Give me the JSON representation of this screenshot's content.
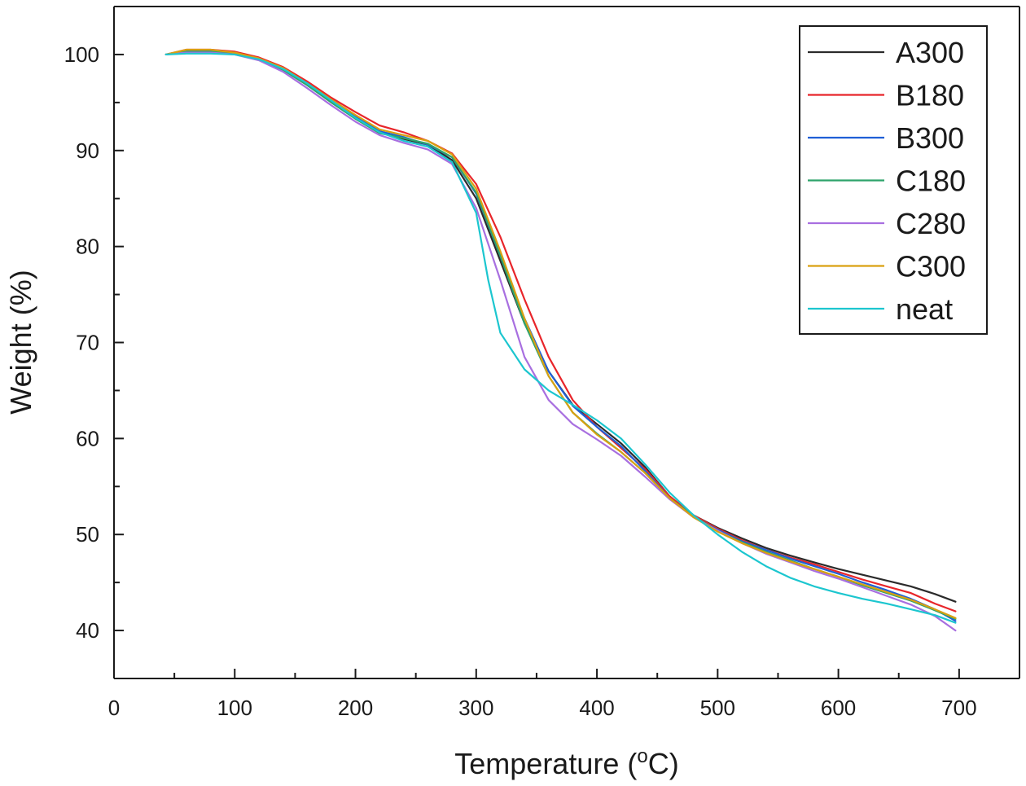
{
  "chart_data": {
    "type": "line",
    "title": "",
    "xlabel": "Temperature (",
    "xlabel_super": "o",
    "xlabel_tail": "C)",
    "ylabel": "Weight (%)",
    "xlim": [
      0,
      750
    ],
    "ylim": [
      35,
      105
    ],
    "xticks": [
      0,
      100,
      200,
      300,
      400,
      500,
      600,
      700
    ],
    "yticks": [
      40,
      50,
      60,
      70,
      80,
      90,
      100
    ],
    "legend_position": "top-right",
    "series": [
      {
        "name": "A300",
        "color": "#2b2b2b",
        "points": [
          [
            43,
            100
          ],
          [
            60,
            100.4
          ],
          [
            80,
            100.4
          ],
          [
            100,
            100.2
          ],
          [
            120,
            99.6
          ],
          [
            140,
            98.6
          ],
          [
            160,
            97.0
          ],
          [
            180,
            95.3
          ],
          [
            200,
            93.6
          ],
          [
            220,
            92.0
          ],
          [
            240,
            91.2
          ],
          [
            260,
            90.6
          ],
          [
            280,
            89.0
          ],
          [
            300,
            85.0
          ],
          [
            320,
            78.5
          ],
          [
            340,
            72.0
          ],
          [
            360,
            67.0
          ],
          [
            380,
            63.5
          ],
          [
            400,
            61.5
          ],
          [
            420,
            59.5
          ],
          [
            440,
            57.0
          ],
          [
            460,
            54.0
          ],
          [
            480,
            52.0
          ],
          [
            500,
            50.7
          ],
          [
            520,
            49.6
          ],
          [
            540,
            48.6
          ],
          [
            560,
            47.8
          ],
          [
            580,
            47.1
          ],
          [
            600,
            46.4
          ],
          [
            620,
            45.8
          ],
          [
            640,
            45.2
          ],
          [
            660,
            44.6
          ],
          [
            680,
            43.8
          ],
          [
            697,
            43.0
          ]
        ]
      },
      {
        "name": "B180",
        "color": "#e8252a",
        "points": [
          [
            43,
            100
          ],
          [
            60,
            100.5
          ],
          [
            80,
            100.5
          ],
          [
            100,
            100.3
          ],
          [
            120,
            99.7
          ],
          [
            140,
            98.7
          ],
          [
            160,
            97.2
          ],
          [
            180,
            95.5
          ],
          [
            200,
            94.0
          ],
          [
            220,
            92.6
          ],
          [
            240,
            91.9
          ],
          [
            260,
            91.0
          ],
          [
            280,
            89.7
          ],
          [
            300,
            86.5
          ],
          [
            320,
            81.0
          ],
          [
            340,
            74.5
          ],
          [
            360,
            68.5
          ],
          [
            380,
            64.0
          ],
          [
            400,
            61.2
          ],
          [
            420,
            59.0
          ],
          [
            440,
            56.8
          ],
          [
            460,
            54.0
          ],
          [
            480,
            52.0
          ],
          [
            500,
            50.6
          ],
          [
            520,
            49.4
          ],
          [
            540,
            48.4
          ],
          [
            560,
            47.6
          ],
          [
            580,
            46.9
          ],
          [
            600,
            46.1
          ],
          [
            620,
            45.3
          ],
          [
            640,
            44.6
          ],
          [
            660,
            43.9
          ],
          [
            680,
            42.8
          ],
          [
            697,
            42.0
          ]
        ]
      },
      {
        "name": "B300",
        "color": "#1f5fd6",
        "points": [
          [
            43,
            100
          ],
          [
            60,
            100.3
          ],
          [
            80,
            100.3
          ],
          [
            100,
            100.1
          ],
          [
            120,
            99.5
          ],
          [
            140,
            98.5
          ],
          [
            160,
            97.0
          ],
          [
            180,
            95.2
          ],
          [
            200,
            93.6
          ],
          [
            220,
            92.0
          ],
          [
            240,
            91.4
          ],
          [
            260,
            90.6
          ],
          [
            280,
            89.3
          ],
          [
            300,
            85.5
          ],
          [
            320,
            79.0
          ],
          [
            340,
            72.5
          ],
          [
            360,
            67.0
          ],
          [
            380,
            63.4
          ],
          [
            400,
            61.2
          ],
          [
            420,
            59.2
          ],
          [
            440,
            56.6
          ],
          [
            460,
            53.8
          ],
          [
            480,
            51.8
          ],
          [
            500,
            50.5
          ],
          [
            520,
            49.3
          ],
          [
            540,
            48.4
          ],
          [
            560,
            47.5
          ],
          [
            580,
            46.7
          ],
          [
            600,
            45.9
          ],
          [
            620,
            45.0
          ],
          [
            640,
            44.2
          ],
          [
            660,
            43.3
          ],
          [
            680,
            42.2
          ],
          [
            697,
            41.0
          ]
        ]
      },
      {
        "name": "C180",
        "color": "#2ea36b",
        "points": [
          [
            43,
            100
          ],
          [
            60,
            100.3
          ],
          [
            80,
            100.3
          ],
          [
            100,
            100.1
          ],
          [
            120,
            99.5
          ],
          [
            140,
            98.4
          ],
          [
            160,
            96.8
          ],
          [
            180,
            95.0
          ],
          [
            200,
            93.3
          ],
          [
            220,
            91.8
          ],
          [
            240,
            91.3
          ],
          [
            260,
            90.7
          ],
          [
            280,
            89.3
          ],
          [
            300,
            85.6
          ],
          [
            320,
            79.0
          ],
          [
            340,
            72.0
          ],
          [
            360,
            66.5
          ],
          [
            380,
            62.7
          ],
          [
            400,
            60.5
          ],
          [
            420,
            58.6
          ],
          [
            440,
            56.4
          ],
          [
            460,
            53.8
          ],
          [
            480,
            51.9
          ],
          [
            500,
            50.4
          ],
          [
            520,
            49.2
          ],
          [
            540,
            48.2
          ],
          [
            560,
            47.3
          ],
          [
            580,
            46.4
          ],
          [
            600,
            45.6
          ],
          [
            620,
            44.7
          ],
          [
            640,
            43.9
          ],
          [
            660,
            43.1
          ],
          [
            680,
            42.1
          ],
          [
            697,
            41.2
          ]
        ]
      },
      {
        "name": "C280",
        "color": "#a86fe0",
        "points": [
          [
            43,
            100
          ],
          [
            60,
            100.2
          ],
          [
            80,
            100.2
          ],
          [
            100,
            100.0
          ],
          [
            120,
            99.4
          ],
          [
            140,
            98.2
          ],
          [
            160,
            96.5
          ],
          [
            180,
            94.7
          ],
          [
            200,
            93.0
          ],
          [
            220,
            91.6
          ],
          [
            240,
            90.8
          ],
          [
            260,
            90.1
          ],
          [
            280,
            88.6
          ],
          [
            300,
            84.0
          ],
          [
            320,
            76.5
          ],
          [
            340,
            68.5
          ],
          [
            360,
            64.0
          ],
          [
            380,
            61.5
          ],
          [
            400,
            59.9
          ],
          [
            420,
            58.2
          ],
          [
            440,
            56.0
          ],
          [
            460,
            53.7
          ],
          [
            480,
            51.8
          ],
          [
            500,
            50.4
          ],
          [
            520,
            49.1
          ],
          [
            540,
            48.0
          ],
          [
            560,
            47.1
          ],
          [
            580,
            46.2
          ],
          [
            600,
            45.4
          ],
          [
            620,
            44.5
          ],
          [
            640,
            43.6
          ],
          [
            660,
            42.7
          ],
          [
            680,
            41.5
          ],
          [
            697,
            40.0
          ]
        ]
      },
      {
        "name": "C300",
        "color": "#d9a011",
        "points": [
          [
            43,
            100
          ],
          [
            60,
            100.5
          ],
          [
            80,
            100.5
          ],
          [
            100,
            100.2
          ],
          [
            120,
            99.6
          ],
          [
            140,
            98.6
          ],
          [
            160,
            97.0
          ],
          [
            180,
            95.3
          ],
          [
            200,
            93.7
          ],
          [
            220,
            92.2
          ],
          [
            240,
            91.6
          ],
          [
            260,
            91.0
          ],
          [
            280,
            89.6
          ],
          [
            300,
            86.0
          ],
          [
            320,
            79.5
          ],
          [
            340,
            72.5
          ],
          [
            360,
            66.5
          ],
          [
            380,
            62.7
          ],
          [
            400,
            60.4
          ],
          [
            420,
            58.6
          ],
          [
            440,
            56.4
          ],
          [
            460,
            53.8
          ],
          [
            480,
            51.8
          ],
          [
            500,
            50.3
          ],
          [
            520,
            49.1
          ],
          [
            540,
            48.1
          ],
          [
            560,
            47.2
          ],
          [
            580,
            46.4
          ],
          [
            600,
            45.6
          ],
          [
            620,
            44.8
          ],
          [
            640,
            44.0
          ],
          [
            660,
            43.2
          ],
          [
            680,
            42.2
          ],
          [
            697,
            41.3
          ]
        ]
      },
      {
        "name": "neat",
        "color": "#1cc6cf",
        "points": [
          [
            43,
            100
          ],
          [
            60,
            100.1
          ],
          [
            80,
            100.1
          ],
          [
            100,
            100.0
          ],
          [
            120,
            99.5
          ],
          [
            140,
            98.5
          ],
          [
            160,
            97.0
          ],
          [
            180,
            95.2
          ],
          [
            200,
            93.4
          ],
          [
            220,
            91.9
          ],
          [
            240,
            91.0
          ],
          [
            260,
            90.4
          ],
          [
            280,
            88.8
          ],
          [
            300,
            83.5
          ],
          [
            310,
            76.5
          ],
          [
            320,
            71.0
          ],
          [
            340,
            67.2
          ],
          [
            360,
            65.0
          ],
          [
            380,
            63.5
          ],
          [
            400,
            61.9
          ],
          [
            420,
            60.0
          ],
          [
            440,
            57.3
          ],
          [
            460,
            54.4
          ],
          [
            480,
            52.0
          ],
          [
            500,
            50.0
          ],
          [
            520,
            48.2
          ],
          [
            540,
            46.7
          ],
          [
            560,
            45.5
          ],
          [
            580,
            44.6
          ],
          [
            600,
            43.9
          ],
          [
            620,
            43.3
          ],
          [
            640,
            42.8
          ],
          [
            660,
            42.2
          ],
          [
            680,
            41.6
          ],
          [
            697,
            40.8
          ]
        ]
      }
    ]
  }
}
